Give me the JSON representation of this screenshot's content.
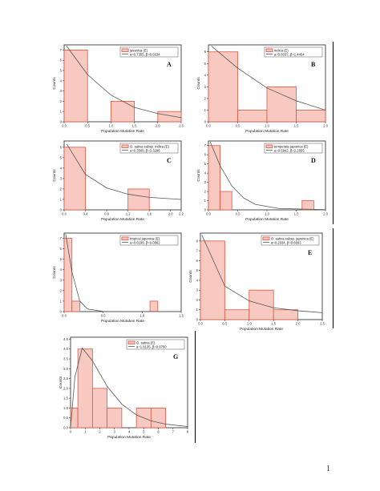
{
  "page_number": "1",
  "chart_data": [
    {
      "id": "A",
      "type": "bar",
      "letter": "A",
      "bins": [
        0.0,
        0.5,
        1.0,
        1.5,
        2.0,
        2.5
      ],
      "counts": [
        7,
        0,
        2,
        0,
        1
      ],
      "xlim": [
        0.0,
        2.5
      ],
      "ylim": [
        0,
        7.5
      ],
      "xticks": [
        "0.0",
        "0.5",
        "1.0",
        "1.5",
        "2.0",
        "2.5"
      ],
      "yticks": [
        "0",
        "1",
        "2",
        "3",
        "4",
        "5",
        "6",
        "7"
      ],
      "xlabel": "Population Mutation Rate",
      "ylabel": "Counts",
      "legend": [
        "javanica (E)",
        "a=0.7355, β=0.5634"
      ],
      "legend_position": "top-right",
      "letter_position": "right",
      "curve": {
        "kind": "exponential",
        "points": [
          [
            0.05,
            7.4
          ],
          [
            0.5,
            4.6
          ],
          [
            1.0,
            2.6
          ],
          [
            1.5,
            1.4
          ],
          [
            2.0,
            0.8
          ],
          [
            2.5,
            0.4
          ]
        ]
      }
    },
    {
      "id": "B",
      "type": "bar",
      "letter": "B",
      "bins": [
        0.0,
        0.5,
        1.0,
        1.5,
        2.0
      ],
      "counts": [
        6,
        1,
        3,
        1
      ],
      "xlim": [
        0.0,
        2.0
      ],
      "ylim": [
        0,
        6.6
      ],
      "xticks": [
        "0.0",
        "0.5",
        "1.0",
        "1.5",
        "2.0"
      ],
      "yticks": [
        "0",
        "1",
        "2",
        "3",
        "4",
        "5",
        "6"
      ],
      "xlabel": "Population Mutation Rate",
      "ylabel": "Counts",
      "legend": [
        "indica (E)",
        "a=0.8037, β=1.4454"
      ],
      "legend_position": "top-right",
      "letter_position": "right",
      "curve": {
        "kind": "exponential",
        "points": [
          [
            0.05,
            6.5
          ],
          [
            0.5,
            4.6
          ],
          [
            1.0,
            2.9
          ],
          [
            1.5,
            1.8
          ],
          [
            2.0,
            1.0
          ]
        ]
      }
    },
    {
      "id": "C",
      "type": "bar",
      "letter": "C",
      "bins": [
        0.0,
        0.4,
        0.8,
        1.2,
        1.6,
        2.0,
        2.4
      ],
      "counts": [
        6,
        0,
        0,
        2,
        0,
        0
      ],
      "xlim": [
        0.0,
        2.2
      ],
      "ylim": [
        0,
        6.6
      ],
      "xticks": [
        "0.0",
        "0.4",
        "0.8",
        "1.2",
        "1.6",
        "2.0",
        "2.2"
      ],
      "yticks": [
        "0",
        "1",
        "2",
        "3",
        "4",
        "5",
        "6"
      ],
      "xlabel": "Population Mutation Rate",
      "ylabel": "Counts",
      "legend": [
        "O. sativa subsp. indica (E)",
        "a=0.3569, β=3.3296"
      ],
      "legend_position": "top-right",
      "letter_position": "right",
      "curve": {
        "kind": "exponential",
        "points": [
          [
            0.05,
            6.3
          ],
          [
            0.4,
            3.4
          ],
          [
            0.8,
            2.1
          ],
          [
            1.2,
            1.5
          ],
          [
            1.6,
            1.2
          ],
          [
            2.2,
            1.0
          ]
        ]
      }
    },
    {
      "id": "D",
      "type": "bar",
      "letter": "D",
      "bins": [
        0.0,
        0.2,
        0.4,
        0.6,
        0.8,
        1.0,
        1.2,
        1.4,
        1.6,
        1.8,
        2.0
      ],
      "counts": [
        7,
        2,
        0,
        0,
        0,
        0,
        0,
        0,
        1,
        0
      ],
      "xlim": [
        0.0,
        2.0
      ],
      "ylim": [
        0,
        7.5
      ],
      "xticks": [
        "0.0",
        "0.5",
        "1.0",
        "1.5",
        "2.0"
      ],
      "yticks": [
        "0",
        "1",
        "2",
        "3",
        "4",
        "5",
        "6",
        "7"
      ],
      "xlabel": "Population Mutation Rate",
      "ylabel": "Counts",
      "legend": [
        "temperate japonica (E)",
        "a=0.5942, β=2.2855"
      ],
      "legend_position": "top-right",
      "letter_position": "right",
      "curve": {
        "kind": "exponential",
        "points": [
          [
            0.03,
            7.4
          ],
          [
            0.2,
            4.8
          ],
          [
            0.4,
            2.6
          ],
          [
            0.6,
            1.3
          ],
          [
            0.8,
            0.6
          ],
          [
            1.2,
            0.15
          ],
          [
            2.0,
            0.02
          ]
        ]
      }
    },
    {
      "id": "F",
      "type": "bar",
      "letter": "",
      "bins": [
        0.0,
        0.1,
        0.2,
        0.3,
        0.4,
        0.5,
        0.6,
        0.7,
        0.8,
        0.9,
        1.0,
        1.1,
        1.2,
        1.3,
        1.4,
        1.5
      ],
      "counts": [
        7,
        1,
        0,
        0,
        0,
        0,
        0,
        0,
        0,
        0,
        0,
        1,
        0,
        0,
        0
      ],
      "xlim": [
        0.0,
        1.5
      ],
      "ylim": [
        0,
        7.5
      ],
      "xticks": [
        "0.0",
        "0.5",
        "1.0",
        "1.5"
      ],
      "yticks": [
        "0",
        "1",
        "2",
        "3",
        "4",
        "5",
        "6",
        "7"
      ],
      "xlabel": "Population Mutation Rate",
      "ylabel": "Counts",
      "legend": [
        "tropical japonica (E)",
        "a=0.6199, β=0.0862"
      ],
      "legend_position": "top-right",
      "letter_position": "right",
      "curve": {
        "kind": "exponential",
        "points": [
          [
            0.02,
            7.4
          ],
          [
            0.1,
            3.8
          ],
          [
            0.2,
            1.0
          ],
          [
            0.3,
            0.25
          ],
          [
            0.5,
            0.02
          ],
          [
            1.5,
            0.0
          ]
        ]
      }
    },
    {
      "id": "E",
      "type": "bar",
      "letter": "E",
      "bins": [
        0.0,
        0.5,
        1.0,
        1.5,
        2.0
      ],
      "counts": [
        8,
        1,
        3,
        1
      ],
      "xlim": [
        0.0,
        2.5
      ],
      "ylim": [
        0,
        8.8
      ],
      "xticks": [
        "0.0",
        "0.5",
        "1.0",
        "1.5",
        "2.0",
        "2.5"
      ],
      "yticks": [
        "0",
        "1",
        "2",
        "3",
        "4",
        "5",
        "6",
        "7",
        "8"
      ],
      "xlabel": "Population Mutation Rate",
      "ylabel": "Counts",
      "legend": [
        "O. sativa subsp. japonica (E)",
        "a=0.2934, β=0.6693"
      ],
      "legend_position": "top-right",
      "letter_position": "right",
      "curve": {
        "kind": "exponential",
        "points": [
          [
            0.03,
            8.6
          ],
          [
            0.5,
            3.4
          ],
          [
            1.0,
            1.9
          ],
          [
            1.5,
            1.2
          ],
          [
            2.0,
            0.9
          ],
          [
            2.5,
            0.7
          ]
        ]
      }
    },
    {
      "id": "G",
      "type": "bar",
      "letter": "G",
      "bins": [
        0,
        0.5,
        1.5,
        2.5,
        3.5,
        4.5,
        5.5,
        6.5
      ],
      "counts": [
        1,
        4,
        2,
        1,
        0,
        1,
        1
      ],
      "xlim": [
        0,
        8
      ],
      "ylim": [
        0,
        4.6
      ],
      "xticks": [
        "0",
        "1",
        "2",
        "3",
        "4",
        "5",
        "6",
        "7",
        "8"
      ],
      "yticks": [
        "0.0",
        "0.5",
        "1.0",
        "1.5",
        "2.0",
        "2.5",
        "3.0",
        "3.5",
        "4.0",
        "4.5"
      ],
      "xlabel": "Population Mutation Rate",
      "ylabel": "Counts",
      "legend": [
        "O. sativa (E)",
        "a=1.8135, β=0.9760"
      ],
      "legend_position": "top-right",
      "letter_position": "right",
      "curve": {
        "kind": "gamma",
        "points": [
          [
            0.0,
            0.0
          ],
          [
            0.3,
            2.6
          ],
          [
            0.8,
            4.05
          ],
          [
            1.5,
            3.4
          ],
          [
            2.5,
            2.1
          ],
          [
            3.5,
            1.2
          ],
          [
            4.5,
            0.65
          ],
          [
            5.5,
            0.35
          ],
          [
            6.5,
            0.18
          ],
          [
            8.0,
            0.06
          ]
        ]
      }
    }
  ]
}
